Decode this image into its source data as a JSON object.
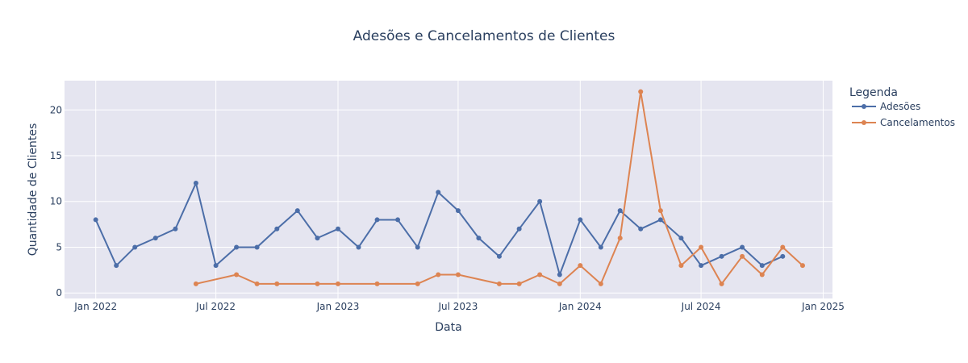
{
  "chart_data": {
    "type": "line",
    "title": "Adesões e Cancelamentos de Clientes",
    "xlabel": "Data",
    "ylabel": "Quantidade de Clientes",
    "xlim": [
      "2021-11-15",
      "2025-01-15"
    ],
    "ylim": [
      -0.6,
      23.2
    ],
    "x_ticks": [
      {
        "date": "2022-01-01",
        "label": "Jan 2022"
      },
      {
        "date": "2022-07-01",
        "label": "Jul 2022"
      },
      {
        "date": "2023-01-01",
        "label": "Jan 2023"
      },
      {
        "date": "2023-07-01",
        "label": "Jul 2023"
      },
      {
        "date": "2024-01-01",
        "label": "Jan 2024"
      },
      {
        "date": "2024-07-01",
        "label": "Jul 2024"
      },
      {
        "date": "2025-01-01",
        "label": "Jan 2025"
      }
    ],
    "y_ticks": [
      0,
      5,
      10,
      15,
      20
    ],
    "grid": true,
    "legend": {
      "title": "Legenda",
      "position": "top-right"
    },
    "series": [
      {
        "name": "Adesões",
        "color": "#4c6ea8",
        "x": [
          "2022-01-01",
          "2022-02-01",
          "2022-03-01",
          "2022-04-01",
          "2022-05-01",
          "2022-06-01",
          "2022-07-01",
          "2022-08-01",
          "2022-09-01",
          "2022-10-01",
          "2022-11-01",
          "2022-12-01",
          "2023-01-01",
          "2023-02-01",
          "2023-03-01",
          "2023-04-01",
          "2023-05-01",
          "2023-06-01",
          "2023-07-01",
          "2023-08-01",
          "2023-09-01",
          "2023-10-01",
          "2023-11-01",
          "2023-12-01",
          "2024-01-01",
          "2024-02-01",
          "2024-03-01",
          "2024-04-01",
          "2024-05-01",
          "2024-06-01",
          "2024-07-01",
          "2024-08-01",
          "2024-09-01",
          "2024-10-01",
          "2024-11-01"
        ],
        "y": [
          8,
          3,
          5,
          6,
          7,
          12,
          3,
          5,
          5,
          7,
          9,
          6,
          7,
          5,
          8,
          8,
          5,
          11,
          9,
          6,
          4,
          7,
          10,
          2,
          8,
          5,
          9,
          7,
          8,
          6,
          3,
          4,
          5,
          3,
          4
        ]
      },
      {
        "name": "Cancelamentos",
        "color": "#dd8452",
        "x": [
          "2022-06-01",
          "2022-08-01",
          "2022-09-01",
          "2022-10-01",
          "2022-12-01",
          "2023-01-01",
          "2023-03-01",
          "2023-05-01",
          "2023-06-01",
          "2023-07-01",
          "2023-09-01",
          "2023-10-01",
          "2023-11-01",
          "2023-12-01",
          "2024-01-01",
          "2024-02-01",
          "2024-03-01",
          "2024-04-01",
          "2024-05-01",
          "2024-06-01",
          "2024-07-01",
          "2024-08-01",
          "2024-09-01",
          "2024-10-01",
          "2024-11-01",
          "2024-12-01"
        ],
        "y": [
          1,
          2,
          1,
          1,
          1,
          1,
          1,
          1,
          2,
          2,
          1,
          1,
          2,
          1,
          3,
          1,
          6,
          22,
          9,
          3,
          5,
          1,
          4,
          2,
          5,
          3
        ]
      }
    ]
  }
}
